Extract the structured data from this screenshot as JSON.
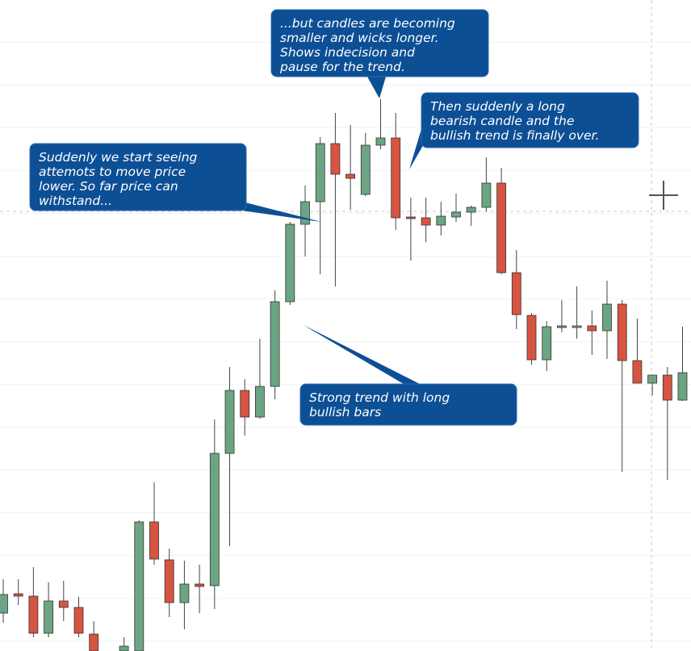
{
  "chart_data": {
    "type": "candlestick",
    "ylim": [
      0,
      807
    ],
    "up_color": "#6ba583",
    "down_color": "#d75442",
    "open": [
      47,
      71,
      68,
      22,
      62,
      54,
      21,
      null,
      0,
      0,
      160,
      113,
      60,
      83,
      81,
      245,
      323,
      290,
      328,
      433,
      529,
      557,
      629,
      591,
      566,
      627,
      636,
      538,
      537,
      528,
      538,
      544,
      550,
      580,
      469,
      416,
      361,
      401,
      401,
      403,
      397,
      430,
      360,
      332,
      342,
      311
    ],
    "high": [
      89,
      89,
      104,
      85,
      87,
      67,
      37,
      null,
      17,
      162,
      209,
      127,
      112,
      107,
      287,
      352,
      337,
      387,
      447,
      532,
      577,
      637,
      667,
      652,
      642,
      684,
      667,
      562,
      562,
      557,
      567,
      552,
      612,
      599,
      497,
      419,
      409,
      435,
      452,
      422,
      459,
      435,
      412,
      342,
      352,
      402
    ],
    "low": [
      35,
      57,
      17,
      17,
      37,
      17,
      0,
      null,
      0,
      0,
      107,
      42,
      27,
      47,
      52,
      130,
      267,
      288,
      312,
      429,
      489,
      467,
      452,
      547,
      564,
      622,
      522,
      484,
      507,
      515,
      532,
      527,
      545,
      467,
      399,
      355,
      347,
      395,
      387,
      367,
      362,
      222,
      332,
      317,
      212,
      310
    ],
    "close": [
      70,
      68,
      22,
      62,
      54,
      22,
      0,
      null,
      6,
      160,
      114,
      60,
      83,
      80,
      245,
      323,
      290,
      328,
      433,
      529,
      557,
      629,
      591,
      586,
      627,
      636,
      537,
      536,
      528,
      539,
      544,
      550,
      580,
      469,
      417,
      361,
      402,
      403,
      403,
      397,
      430,
      360,
      332,
      342,
      311,
      345
    ],
    "annotations": [
      {
        "lines": [
          "...but candles are becoming",
          "smaller and wicks longer.",
          "Shows indecision and",
          "pause for the trend."
        ]
      },
      {
        "lines": [
          "Then suddenly a long",
          "bearish candle and the",
          "bullish trend is finally over."
        ]
      },
      {
        "lines": [
          "Suddenly we start seeing",
          "attemots to move price",
          "lower. So far price can",
          "withstand..."
        ]
      },
      {
        "lines": [
          "Strong trend with long",
          "bullish bars"
        ]
      }
    ]
  }
}
